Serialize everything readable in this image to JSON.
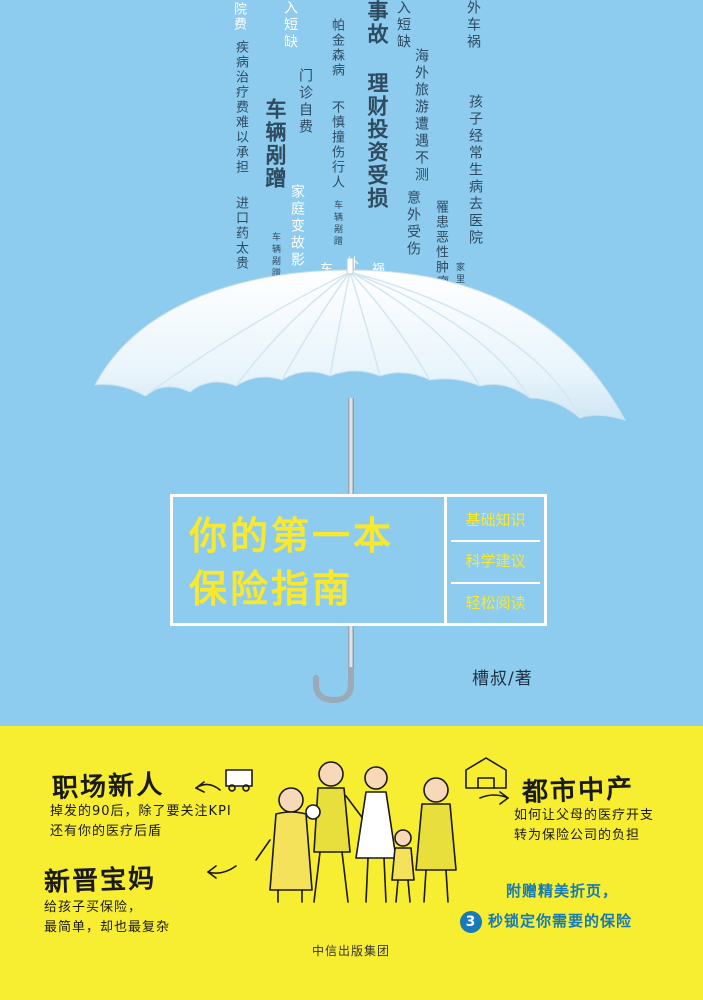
{
  "colors": {
    "sky": "#8dcbef",
    "yellow": "#f9e92c",
    "band": "#f7ed31",
    "text_dark": "#2f4b5f",
    "blue": "#167bb8"
  },
  "rain": {
    "c1": "院费",
    "c2": "疾病治疗费难以承担",
    "c3": "进口药太贵",
    "c4": "入短缺",
    "c5": "门诊自费",
    "c6": "车辆剐蹭",
    "c7": "家庭变故影",
    "c8": "车辆剐蹭",
    "c9": "帕金森病",
    "c10": "不慎撞伤行人",
    "c11": "车辆剐蹭",
    "c12": "事故",
    "c13": "理财投资受损",
    "c14": "入短缺",
    "c15": "海外旅游遭遇不测",
    "c16": "意外受伤",
    "c17": "罹患恶性肿瘤",
    "c18": "外车祸",
    "c19": "孩子经常生病去医院",
    "c20": "家里被水",
    "c21": "外",
    "c22": "车",
    "c23": "祸"
  },
  "title": {
    "line1": "你的第一本",
    "line2": "保险指南"
  },
  "features": [
    "基础知识",
    "科学建议",
    "轻松阅读"
  ],
  "author": "槽叔/著",
  "panels": {
    "left_top": {
      "title": "职场新人",
      "line1": "掉发的90后，除了要关注KPI",
      "line2": "还有你的医疗后盾"
    },
    "left_bottom": {
      "title": "新晋宝妈",
      "line1": "给孩子买保险，",
      "line2": "最简单，却也最复杂"
    },
    "right": {
      "title": "都市中产",
      "line1": "如何让父母的医疗开支",
      "line2": "转为保险公司的负担"
    }
  },
  "promo": {
    "line1": "附赠精美折页，",
    "badge": "3",
    "line2": "秒锁定你需要的保险"
  },
  "publisher": "中信出版集团"
}
